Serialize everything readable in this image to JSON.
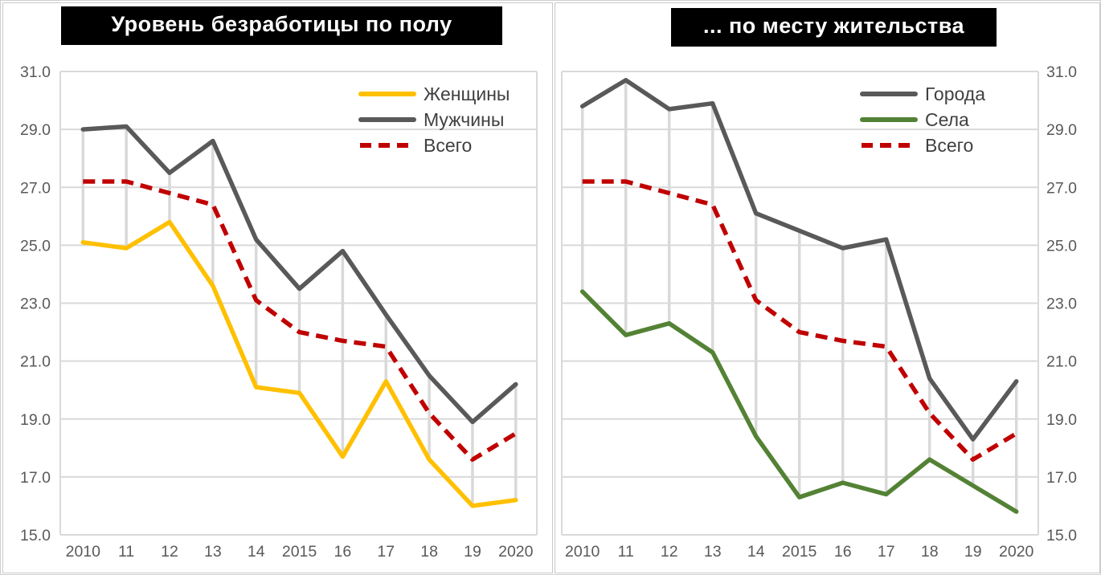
{
  "palette": {
    "grid": "#D9D9D9",
    "axis_text": "#595959",
    "legend_text": "#404040",
    "title_bg": "#000000",
    "title_fg": "#FFFFFF"
  },
  "chart_data": [
    {
      "type": "line",
      "title": "Уровень безработицы по полу",
      "categories": [
        "2010",
        "11",
        "12",
        "13",
        "14",
        "2015",
        "16",
        "17",
        "18",
        "19",
        "2020"
      ],
      "y_ticks": [
        "31.0",
        "29.0",
        "27.0",
        "25.0",
        "23.0",
        "21.0",
        "19.0",
        "17.0",
        "15.0"
      ],
      "ylim": [
        15,
        31
      ],
      "y_axis_side": "left",
      "grid": true,
      "high_low_lines": true,
      "legend_position": "inside-top-right",
      "series": [
        {
          "name": "Женщины",
          "color": "#FFC000",
          "style": "solid",
          "values": [
            25.1,
            24.9,
            25.8,
            23.6,
            20.1,
            19.9,
            17.7,
            20.3,
            17.6,
            16.0,
            16.2
          ]
        },
        {
          "name": "Мужчины",
          "color": "#595959",
          "style": "solid",
          "values": [
            29.0,
            29.1,
            27.5,
            28.6,
            25.2,
            23.5,
            24.8,
            22.6,
            20.5,
            18.9,
            20.2
          ]
        },
        {
          "name": "Всего",
          "color": "#C00000",
          "style": "dashed",
          "values": [
            27.2,
            27.2,
            26.8,
            26.4,
            23.1,
            22.0,
            21.7,
            21.5,
            19.2,
            17.6,
            18.5
          ]
        }
      ]
    },
    {
      "type": "line",
      "title": "... по месту жительства",
      "categories": [
        "2010",
        "11",
        "12",
        "13",
        "14",
        "2015",
        "16",
        "17",
        "18",
        "19",
        "2020"
      ],
      "y_ticks": [
        "31.0",
        "29.0",
        "27.0",
        "25.0",
        "23.0",
        "21.0",
        "19.0",
        "17.0",
        "15.0"
      ],
      "ylim": [
        15,
        31
      ],
      "y_axis_side": "right",
      "grid": true,
      "high_low_lines": true,
      "legend_position": "inside-top-right",
      "series": [
        {
          "name": "Города",
          "color": "#595959",
          "style": "solid",
          "values": [
            29.8,
            30.7,
            29.7,
            29.9,
            26.1,
            25.5,
            24.9,
            25.2,
            20.4,
            18.3,
            20.3
          ]
        },
        {
          "name": "Села",
          "color": "#548235",
          "style": "solid",
          "values": [
            23.4,
            21.9,
            22.3,
            21.3,
            18.4,
            16.3,
            16.8,
            16.4,
            17.6,
            16.7,
            15.8
          ]
        },
        {
          "name": "Всего",
          "color": "#C00000",
          "style": "dashed",
          "values": [
            27.2,
            27.2,
            26.8,
            26.4,
            23.1,
            22.0,
            21.7,
            21.5,
            19.2,
            17.6,
            18.5
          ]
        }
      ]
    }
  ]
}
